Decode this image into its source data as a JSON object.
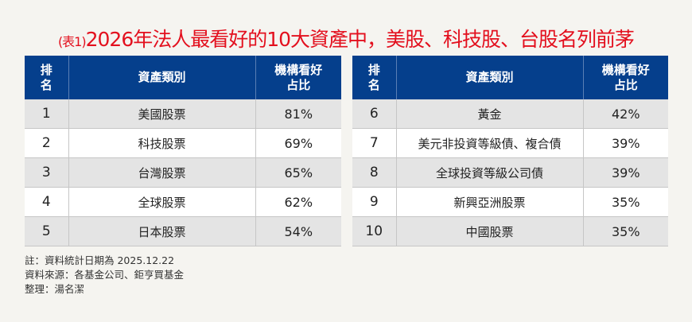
{
  "title": {
    "prefix": "(表1)",
    "main": "2026年法人最看好的10大資產中，美股、科技股、台股名列前茅"
  },
  "headers": {
    "rank": "排名",
    "asset": "資產類別",
    "share": "機構看好占比"
  },
  "left": [
    {
      "rank": "1",
      "asset": "美國股票",
      "share": "81%"
    },
    {
      "rank": "2",
      "asset": "科技股票",
      "share": "69%"
    },
    {
      "rank": "3",
      "asset": "台灣股票",
      "share": "65%"
    },
    {
      "rank": "4",
      "asset": "全球股票",
      "share": "62%"
    },
    {
      "rank": "5",
      "asset": "日本股票",
      "share": "54%"
    }
  ],
  "right": [
    {
      "rank": "6",
      "asset": "黃金",
      "share": "42%"
    },
    {
      "rank": "7",
      "asset": "美元非投資等級債、複合債",
      "share": "39%"
    },
    {
      "rank": "8",
      "asset": "全球投資等級公司債",
      "share": "39%"
    },
    {
      "rank": "9",
      "asset": "新興亞洲股票",
      "share": "35%"
    },
    {
      "rank": "10",
      "asset": "中國股票",
      "share": "35%"
    }
  ],
  "notes": [
    "註：資料統計日期為 2025.12.22",
    "資料來源：各基金公司、鉅亨買基金",
    "整理：湯名潔"
  ],
  "colors": {
    "title": "#e3101e",
    "header": "#053f8c"
  }
}
